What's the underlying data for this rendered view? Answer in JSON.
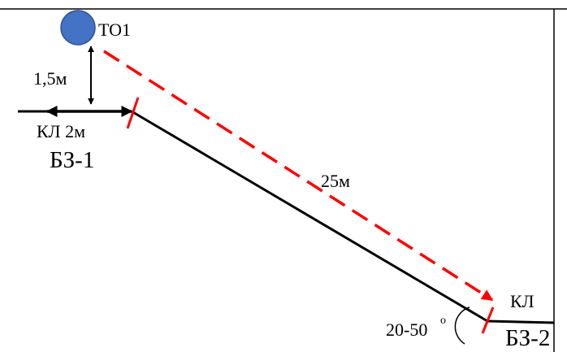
{
  "labels": {
    "point": "ТО1",
    "height": "1,5м",
    "cable_left": "КЛ 2м",
    "zone_1": "БЗ-1",
    "distance": "25м",
    "cable_right": "КЛ",
    "angle": "20-50",
    "degree": "о",
    "zone_2": "БЗ-2"
  },
  "colors": {
    "point_fill": "#4472C4",
    "point_stroke": "#2F528F",
    "line": "#000000",
    "dashed_line": "#FF0000",
    "tick": "#FF0000"
  },
  "icons": {
    "point": "circle-marker",
    "height_arrow": "double-headed-vertical-arrow",
    "cable_arrow": "double-headed-horizontal-arrow",
    "distance_arrow": "dashed-arrow",
    "angle": "arc"
  }
}
